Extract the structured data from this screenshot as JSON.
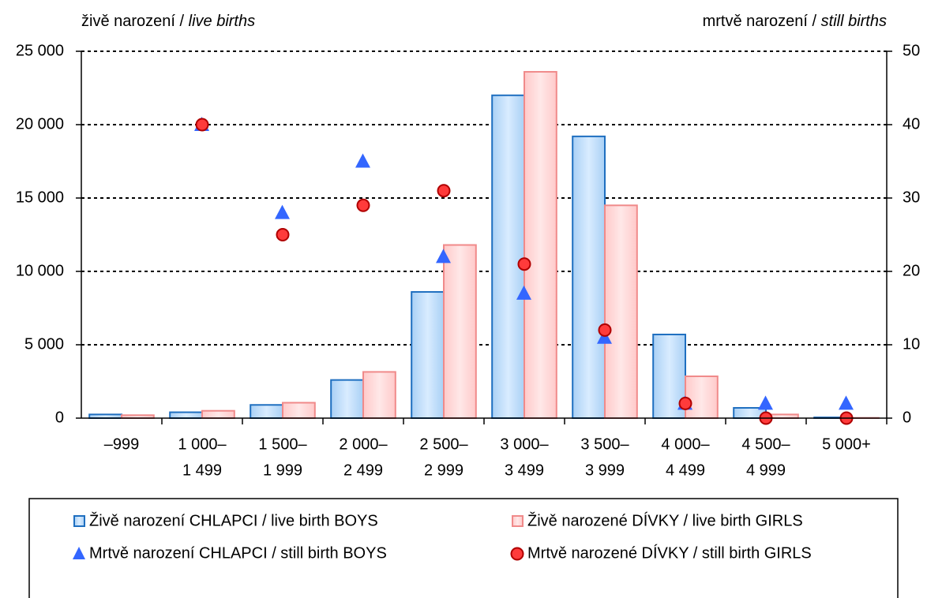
{
  "chart_data": {
    "type": "bar",
    "y_title": [
      "živě narození /",
      "live births"
    ],
    "y2_title": [
      "mrtvě narození /",
      "still births"
    ],
    "categories": [
      [
        "–999"
      ],
      [
        "1 000–",
        "1 499"
      ],
      [
        "1 500–",
        "1 999"
      ],
      [
        "2 000–",
        "2 499"
      ],
      [
        "2 500–",
        "2 999"
      ],
      [
        "3 000–",
        "3 499"
      ],
      [
        "3 500–",
        "3 999"
      ],
      [
        "4 000–",
        "4 499"
      ],
      [
        "4 500–",
        "4 999"
      ],
      [
        "5 000+"
      ]
    ],
    "series": [
      {
        "name": "Živě narození CHLAPCI / live birth BOYS",
        "kind": "bar",
        "color": "#1f6fc0",
        "values": [
          250,
          400,
          900,
          2600,
          8600,
          22000,
          19200,
          5700,
          700,
          50
        ]
      },
      {
        "name": "Živě narozené DÍVKY / live birth GIRLS",
        "kind": "bar",
        "color": "#f08a8a",
        "values": [
          200,
          500,
          1050,
          3150,
          11800,
          23600,
          14500,
          2850,
          250,
          20
        ]
      },
      {
        "name": "Mrtvě narození CHLAPCI / still birth BOYS",
        "kind": "triangle",
        "axis": "y2",
        "color": "#3366ff",
        "values": [
          null,
          40,
          28,
          35,
          22,
          17,
          11,
          2,
          2,
          2
        ]
      },
      {
        "name": "Mrtvě narozené DÍVKY / still birth GIRLS",
        "kind": "circle",
        "axis": "y2",
        "color": "#ff3b3b",
        "values": [
          null,
          40,
          25,
          29,
          31,
          21,
          12,
          2,
          0,
          0
        ]
      }
    ],
    "ylim": [
      0,
      25000
    ],
    "yticks": [
      0,
      {
        "value": 5000,
        "label": "5 000"
      },
      {
        "value": 10000,
        "label": "10 000"
      },
      {
        "value": 15000,
        "label": "15 000"
      },
      {
        "value": 20000,
        "label": "20 000"
      },
      {
        "value": 25000,
        "label": "25 000"
      }
    ],
    "y2lim": [
      0,
      50
    ],
    "y2ticks": [
      0,
      10,
      20,
      30,
      40,
      50
    ],
    "grid": true,
    "legend": "bottom"
  }
}
